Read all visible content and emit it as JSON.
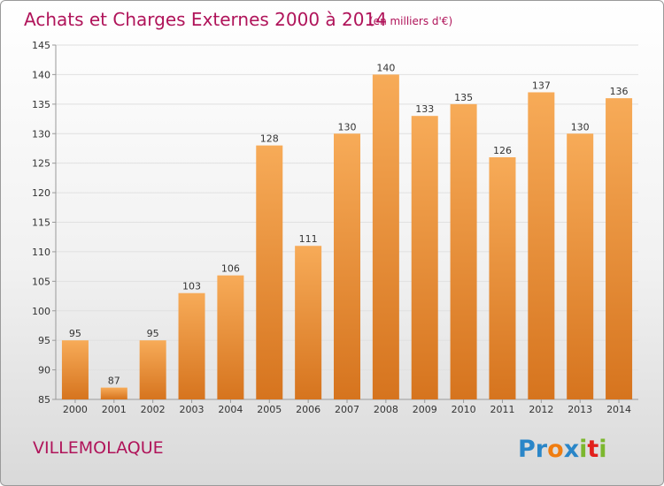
{
  "title": "Achats et Charges Externes 2000 à 2014",
  "unit": "(en milliers d'€)",
  "commune": "VILLEMOLAQUE",
  "logo": {
    "letters": [
      "P",
      "r",
      "o",
      "x",
      "i",
      "t",
      "i"
    ],
    "colors": [
      "#2a86c8",
      "#2a86c8",
      "#f07d10",
      "#2a86c8",
      "#7cb72e",
      "#e2201c",
      "#7cb72e"
    ]
  },
  "colors": {
    "title": "#b0145a",
    "bar_light": "#f5a550",
    "bar_dark": "#d87520",
    "grid": "#e0e0e0"
  },
  "chart_data": {
    "type": "bar",
    "categories": [
      "2000",
      "2001",
      "2002",
      "2003",
      "2004",
      "2005",
      "2006",
      "2007",
      "2008",
      "2009",
      "2010",
      "2011",
      "2012",
      "2013",
      "2014"
    ],
    "values": [
      95,
      87,
      95,
      103,
      106,
      128,
      111,
      130,
      140,
      133,
      135,
      126,
      137,
      130,
      136
    ],
    "yticks": [
      85,
      90,
      95,
      100,
      105,
      110,
      115,
      120,
      125,
      130,
      135,
      140,
      145
    ],
    "ylim": [
      85,
      145
    ],
    "grid": true,
    "xlabel": "",
    "ylabel": ""
  }
}
